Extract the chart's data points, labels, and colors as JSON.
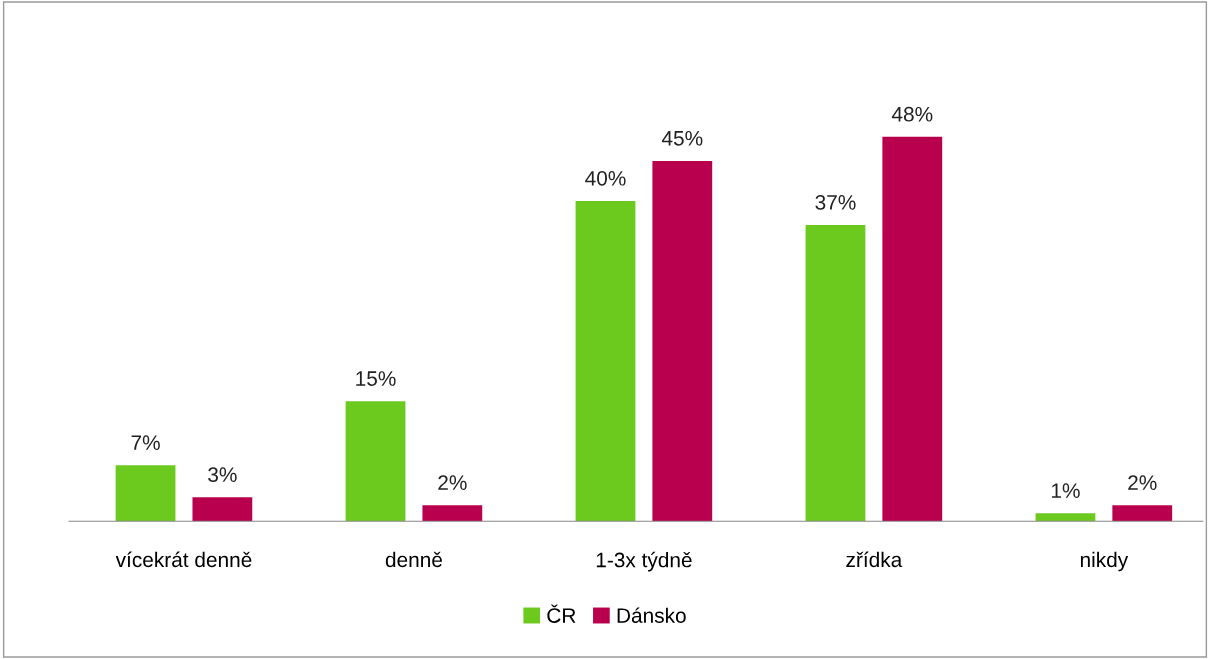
{
  "chart_data": {
    "type": "bar",
    "categories": [
      "vícekrát denně",
      "denně",
      "1-3x týdně",
      "zřídka",
      "nikdy"
    ],
    "series": [
      {
        "name": "ČR",
        "color": "#6cc91e",
        "values": [
          7,
          15,
          40,
          37,
          1
        ],
        "value_labels": [
          "7%",
          "15%",
          "40%",
          "37%",
          "1%"
        ]
      },
      {
        "name": "Dánsko",
        "color": "#b8004e",
        "values": [
          3,
          2,
          45,
          48,
          2
        ],
        "value_labels": [
          "3%",
          "2%",
          "45%",
          "48%",
          "2%"
        ]
      }
    ],
    "legend": "bottom",
    "grid": false,
    "tick_labels": "x"
  }
}
